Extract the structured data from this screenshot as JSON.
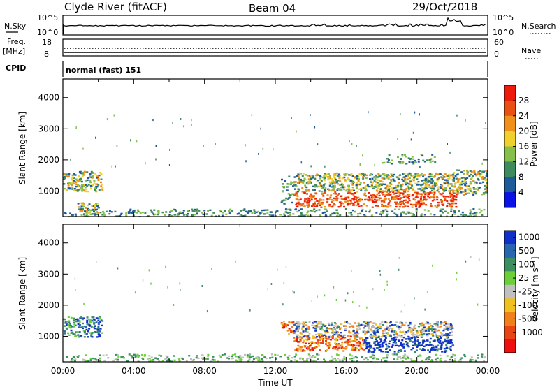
{
  "header": {
    "station": "Clyde River (fitACF)",
    "beam": "Beam 04",
    "date": "29/Oct/2018"
  },
  "strip_panels": {
    "nsky_label": "N.Sky",
    "nsky_ticks": [
      "10^5",
      "10^0"
    ],
    "nsearch_label": "N.Search",
    "nsearch_ticks": [
      "10^5",
      "10^0"
    ],
    "freq_label": "Freq.",
    "freq_unit": "[MHz]",
    "freq_ticks": [
      "18",
      "8"
    ],
    "nave_label": "Nave",
    "nave_ticks": [
      "60",
      "0"
    ],
    "cpid_label": "CPID",
    "cpid_value": "normal (fast) 151"
  },
  "chart_data": [
    {
      "type": "heatmap",
      "name": "power",
      "ylabel": "Slant Range [km]",
      "xlabel": "",
      "ylim": [
        180,
        4600
      ],
      "xlim_hours": [
        0,
        24
      ],
      "yticks": [
        "1000",
        "2000",
        "3000",
        "4000"
      ],
      "colorbar": {
        "label": "Power [dB]",
        "ticks": [
          "4",
          "8",
          "12",
          "16",
          "20",
          "24",
          "28"
        ],
        "colors": [
          "#0a12e6",
          "#1f5a9a",
          "#3e8b5e",
          "#86c04a",
          "#f0d02a",
          "#f08f1a",
          "#e85014",
          "#ee1a0c"
        ]
      },
      "regions": [
        {
          "start": 0.0,
          "end": 2.2,
          "range_from": 1000,
          "range_to": 1650,
          "level": "mid"
        },
        {
          "start": 0.8,
          "end": 2.0,
          "range_from": 250,
          "range_to": 650,
          "level": "mid"
        },
        {
          "start": 12.3,
          "end": 13.0,
          "range_from": 600,
          "range_to": 1500,
          "level": "low"
        },
        {
          "start": 13.0,
          "end": 22.2,
          "range_from": 500,
          "range_to": 1000,
          "level": "high"
        },
        {
          "start": 13.0,
          "end": 22.0,
          "range_from": 1000,
          "range_to": 1600,
          "level": "mid"
        },
        {
          "start": 22.0,
          "end": 24.0,
          "range_from": 900,
          "range_to": 1700,
          "level": "mid"
        },
        {
          "start": 0.0,
          "end": 24.0,
          "range_from": 200,
          "range_to": 450,
          "level": "low"
        },
        {
          "start": 18.0,
          "end": 21.0,
          "range_from": 1900,
          "range_to": 2200,
          "level": "low"
        }
      ]
    },
    {
      "type": "heatmap",
      "name": "velocity",
      "ylabel": "Slant Range [km]",
      "xlabel": "Time UT",
      "ylim": [
        180,
        4600
      ],
      "xlim_hours": [
        0,
        24
      ],
      "yticks": [
        "1000",
        "2000",
        "3000",
        "4000"
      ],
      "colorbar": {
        "label": "Velocity [m s⁻¹]",
        "ticks": [
          "1000",
          "500",
          "100",
          "25",
          "-25",
          "-100",
          "-500",
          "-1000"
        ],
        "colors": [
          "#1030c8",
          "#2a66b0",
          "#3c9060",
          "#6ccf3a",
          "#c0c0c0",
          "#f0c020",
          "#f0801a",
          "#e84414",
          "#ee1010"
        ]
      },
      "regions": [
        {
          "start": 0.0,
          "end": 2.2,
          "range_from": 1000,
          "range_to": 1650,
          "level": "approach"
        },
        {
          "start": 12.3,
          "end": 13.0,
          "range_from": 1100,
          "range_to": 1500,
          "level": "recede"
        },
        {
          "start": 13.0,
          "end": 17.0,
          "range_from": 550,
          "range_to": 1050,
          "level": "recede"
        },
        {
          "start": 17.0,
          "end": 22.0,
          "range_from": 500,
          "range_to": 1000,
          "level": "approach_strong"
        },
        {
          "start": 13.0,
          "end": 22.0,
          "range_from": 1000,
          "range_to": 1500,
          "level": "mixed"
        },
        {
          "start": 0.0,
          "end": 24.0,
          "range_from": 200,
          "range_to": 450,
          "level": "slow"
        }
      ],
      "xticks": [
        "00:00",
        "04:00",
        "08:00",
        "12:00",
        "16:00",
        "20:00",
        "00:00"
      ]
    }
  ]
}
